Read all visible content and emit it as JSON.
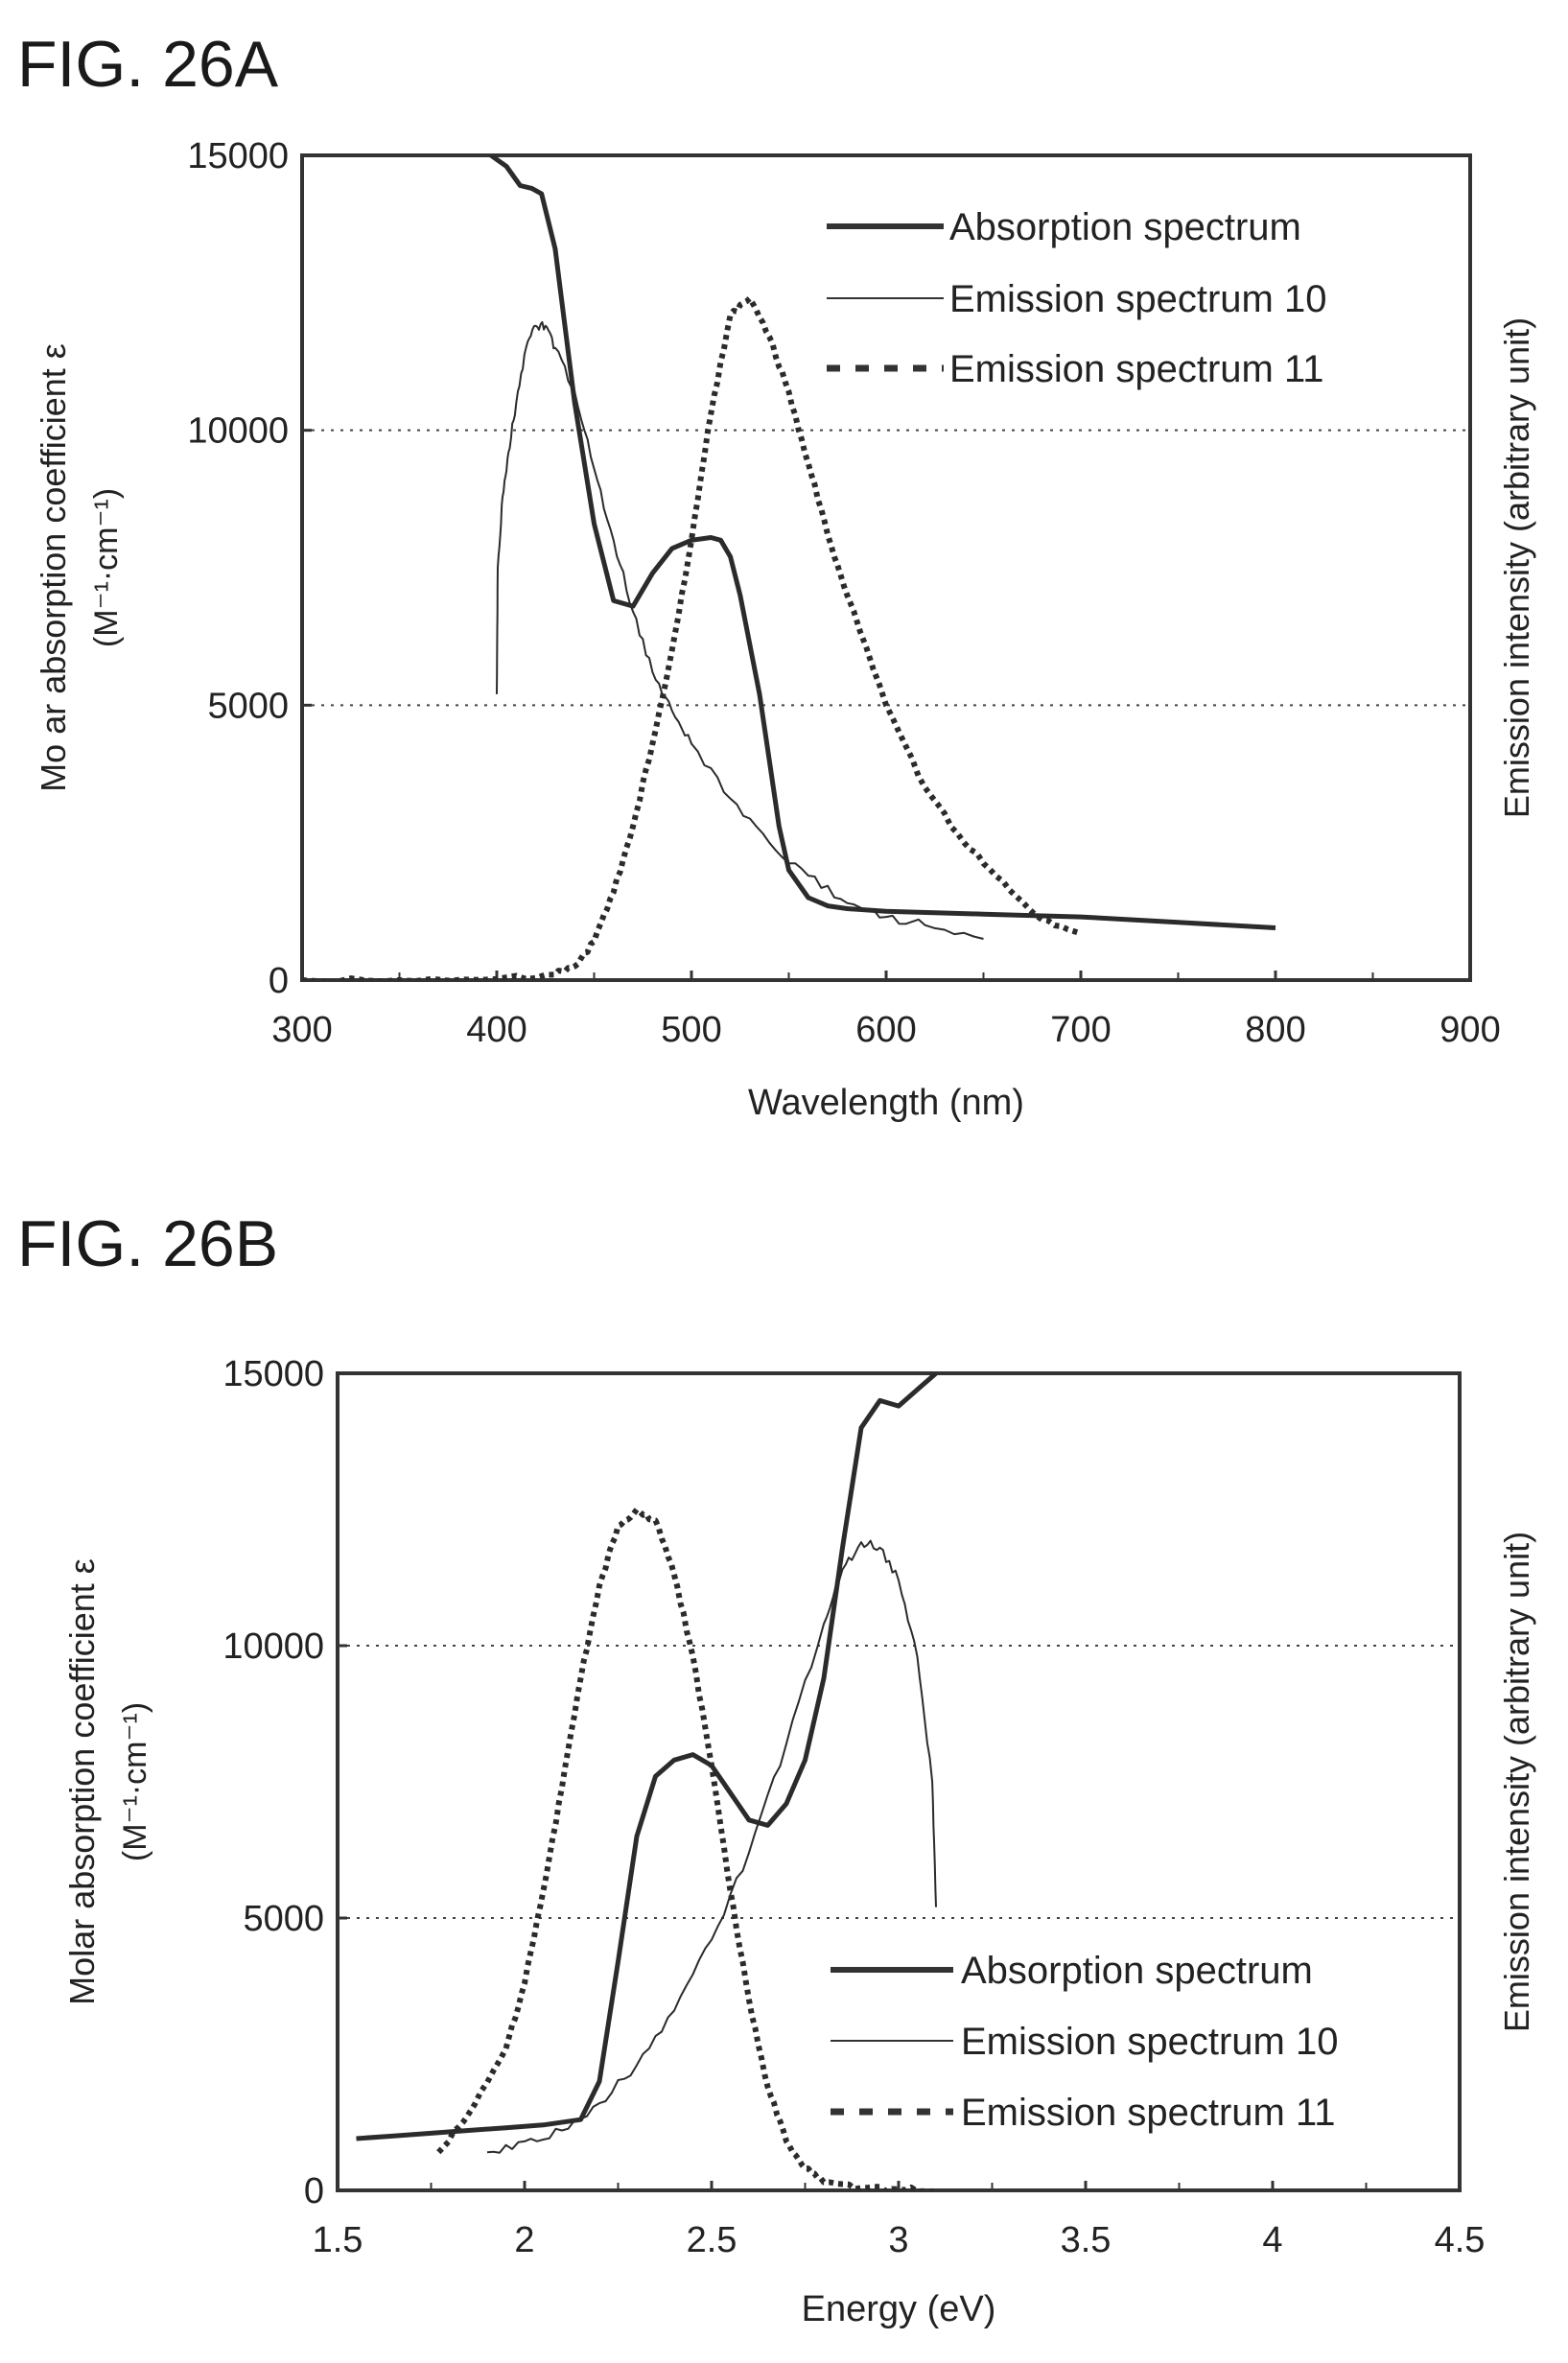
{
  "figures": [
    {
      "label": "FIG. 26A",
      "left_axis_label": "Mo ar absorption coefficient ε",
      "left_axis_unit": "(M⁻¹·cm⁻¹)",
      "right_axis_label": "Emission intensity (arbitrary unit)",
      "x_axis_label": "Wavelength (nm)",
      "legend": [
        "Absorption spectrum",
        "Emission spectrum 10",
        "Emission spectrum 11"
      ]
    },
    {
      "label": "FIG. 26B",
      "left_axis_label": "Molar absorption coefficient ε",
      "left_axis_unit": "(M⁻¹·cm⁻¹)",
      "right_axis_label": "Emission intensity (arbitrary unit)",
      "x_axis_label": "Energy (eV)",
      "legend": [
        "Absorption spectrum",
        "Emission spectrum 10",
        "Emission spectrum 11"
      ]
    }
  ],
  "chart_data": [
    {
      "type": "line",
      "title": "FIG. 26A",
      "xlabel": "Wavelength (nm)",
      "ylabel": "Mo ar absorption coefficient ε (M⁻¹·cm⁻¹)",
      "y2label": "Emission intensity (arbitrary unit)",
      "xlim": [
        300,
        900
      ],
      "ylim": [
        0,
        15000
      ],
      "xticks": [
        "300",
        "400",
        "500",
        "600",
        "700",
        "800",
        "900"
      ],
      "yticks": [
        "0",
        "5000",
        "10000",
        "15000"
      ],
      "grid": "dotted horizontal at 5000 and 10000",
      "legend_position": "top-right",
      "series": [
        {
          "name": "Absorption spectrum",
          "style": "thick solid",
          "x": [
            397,
            405,
            412,
            418,
            423,
            430,
            440,
            450,
            460,
            470,
            480,
            490,
            500,
            510,
            515,
            520,
            525,
            530,
            535,
            540,
            545,
            550,
            560,
            570,
            580,
            600,
            650,
            700,
            750,
            800
          ],
          "y": [
            15000,
            14800,
            14450,
            14400,
            14300,
            13300,
            10500,
            8300,
            6900,
            6800,
            7400,
            7850,
            8000,
            8050,
            8000,
            7700,
            7000,
            6100,
            5200,
            4000,
            2800,
            2000,
            1500,
            1350,
            1300,
            1250,
            1200,
            1150,
            1050,
            950
          ]
        },
        {
          "name": "Emission spectrum 10",
          "style": "thin noisy solid",
          "x": [
            400,
            400.5,
            403,
            406,
            410,
            415,
            420,
            425,
            430,
            440,
            450,
            460,
            470,
            480,
            490,
            500,
            520,
            540,
            560,
            580,
            600,
            620,
            650
          ],
          "y": [
            5200,
            7500,
            8800,
            9600,
            10500,
            11500,
            11900,
            11900,
            11500,
            10700,
            9300,
            8000,
            6700,
            5600,
            4900,
            4300,
            3300,
            2500,
            1900,
            1400,
            1150,
            1000,
            750
          ]
        },
        {
          "name": "Emission spectrum 11",
          "style": "thick dotted",
          "x": [
            300,
            350,
            400,
            430,
            440,
            450,
            460,
            470,
            480,
            490,
            500,
            510,
            520,
            530,
            540,
            550,
            560,
            570,
            580,
            600,
            620,
            640,
            660,
            680,
            700
          ],
          "y": [
            0,
            0,
            20,
            100,
            250,
            700,
            1600,
            2800,
            4300,
            6000,
            8000,
            10300,
            12100,
            12400,
            11700,
            10700,
            9400,
            8100,
            7000,
            5000,
            3500,
            2500,
            1800,
            1100,
            850
          ]
        }
      ]
    },
    {
      "type": "line",
      "title": "FIG. 26B",
      "xlabel": "Energy (eV)",
      "ylabel": "Molar absorption coefficient ε (M⁻¹·cm⁻¹)",
      "y2label": "Emission intensity (arbitrary unit)",
      "xlim": [
        1.5,
        4.5
      ],
      "ylim": [
        0,
        15000
      ],
      "xticks": [
        "1.5",
        "2",
        "2.5",
        "3",
        "3.5",
        "4",
        "4.5"
      ],
      "yticks": [
        "0",
        "5000",
        "10000",
        "15000"
      ],
      "grid": "dotted horizontal at 5000 and 10000",
      "legend_position": "bottom-right",
      "series": [
        {
          "name": "Absorption spectrum",
          "style": "thick solid",
          "x": [
            1.55,
            1.65,
            1.75,
            1.85,
            1.95,
            2.05,
            2.15,
            2.2,
            2.25,
            2.3,
            2.35,
            2.4,
            2.45,
            2.5,
            2.55,
            2.6,
            2.65,
            2.7,
            2.75,
            2.8,
            2.85,
            2.9,
            2.95,
            3.0,
            3.05,
            3.1
          ],
          "y": [
            950,
            1000,
            1050,
            1100,
            1150,
            1200,
            1300,
            2000,
            4200,
            6500,
            7600,
            7900,
            8000,
            7800,
            7300,
            6800,
            6700,
            7100,
            7900,
            9400,
            11800,
            14000,
            14500,
            14400,
            14700,
            15000
          ]
        },
        {
          "name": "Emission spectrum 10",
          "style": "thin noisy solid",
          "x": [
            1.9,
            2.0,
            2.1,
            2.2,
            2.3,
            2.4,
            2.5,
            2.6,
            2.7,
            2.8,
            2.85,
            2.9,
            2.95,
            3.0,
            3.05,
            3.09,
            3.1
          ],
          "y": [
            700,
            900,
            1100,
            1600,
            2300,
            3300,
            4600,
            6200,
            8200,
            10400,
            11400,
            11900,
            11800,
            11200,
            9800,
            7500,
            5200
          ]
        },
        {
          "name": "Emission spectrum 11",
          "style": "thick dotted",
          "x": [
            1.77,
            1.85,
            1.95,
            2.0,
            2.05,
            2.1,
            2.15,
            2.2,
            2.25,
            2.3,
            2.35,
            2.4,
            2.45,
            2.5,
            2.55,
            2.6,
            2.65,
            2.7,
            2.75,
            2.8,
            2.9,
            3.0,
            3.1
          ],
          "y": [
            700,
            1400,
            2600,
            3800,
            5500,
            7400,
            9400,
            11100,
            12200,
            12500,
            12300,
            11300,
            9800,
            7800,
            5500,
            3500,
            1900,
            900,
            400,
            150,
            50,
            20,
            0
          ]
        }
      ]
    }
  ]
}
